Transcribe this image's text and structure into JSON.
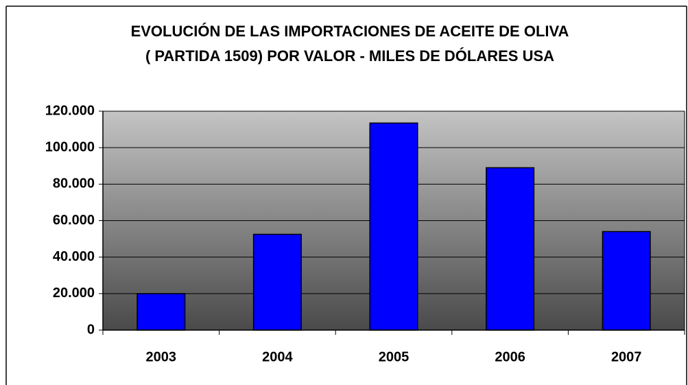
{
  "chart_data": {
    "type": "bar",
    "title": [
      "EVOLUCIÓN DE LAS IMPORTACIONES DE ACEITE DE OLIVA",
      "( PARTIDA 1509) POR VALOR - MILES DE DÓLARES USA"
    ],
    "categories": [
      "2003",
      "2004",
      "2005",
      "2006",
      "2007"
    ],
    "values": [
      20000,
      52500,
      113500,
      89000,
      54000
    ],
    "color": "#0000ff",
    "ylim": [
      0,
      120000
    ],
    "yticks": [
      0,
      {
        "value": 20000,
        "label": "20.000"
      },
      {
        "value": 40000,
        "label": "40.000"
      },
      {
        "value": 60000,
        "label": "60.000"
      },
      {
        "value": 80000,
        "label": "80.000"
      },
      {
        "value": 100000,
        "label": "100.000"
      },
      {
        "value": 120000,
        "label": "120.000"
      }
    ],
    "grid": true
  }
}
